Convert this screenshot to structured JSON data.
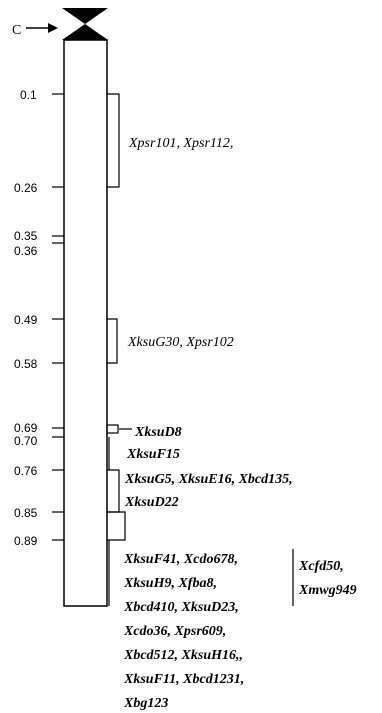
{
  "chromosome": {
    "centromere_label": "C",
    "positions": [
      {
        "label": "0.1"
      },
      {
        "label": "0.26"
      },
      {
        "label": "0.35"
      },
      {
        "label": "0.36"
      },
      {
        "label": "0.49"
      },
      {
        "label": "0.58"
      },
      {
        "label": "0.69"
      },
      {
        "label": "0.70"
      },
      {
        "label": "0.76"
      },
      {
        "label": "0.85"
      },
      {
        "label": "0.89"
      }
    ]
  },
  "markers": {
    "group_1": "Xpsr101, Xpsr112,",
    "group_2": "XksuG30, Xpsr102",
    "group_3": "XksuD8",
    "group_4": "XksuF15",
    "group_5_line1": "XksuG5, XksuE16, Xbcd135,",
    "group_5_line2": "XksuD22",
    "group_6_lines": [
      "XksuF41, Xcdo678,",
      "XksuH9, Xfba8,",
      "Xbcd410, XksuD23,",
      "Xcdo36, Xpsr609,",
      "Xbcd512, XksuH16,,",
      "XksuF11, Xbcd1231,",
      "Xbg123"
    ],
    "side_lines": [
      "Xcfd50,",
      "Xmwg949"
    ]
  }
}
